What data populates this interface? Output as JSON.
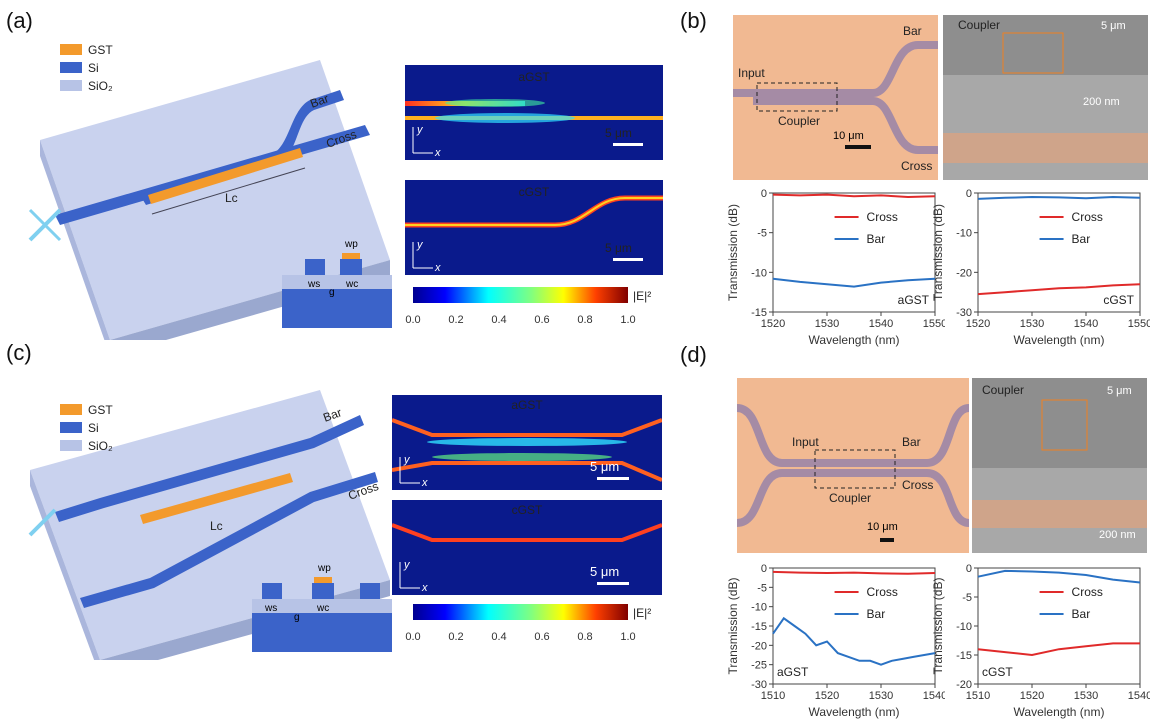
{
  "panels": {
    "a": "(a)",
    "b": "(b)",
    "c": "(c)",
    "d": "(d)"
  },
  "legend3d": {
    "gst": "GST",
    "si": "Si",
    "sio2": "SiO₂"
  },
  "colors": {
    "gst": "#f39a2c",
    "si": "#3b63c9",
    "sio2": "#b7c3e6",
    "red": "#e02a2a",
    "blue": "#2a72c4",
    "micro_bg": "#f1b992",
    "wg": "#a58ba5"
  },
  "labels3d": {
    "bar": "Bar",
    "cross": "Cross",
    "lc": "Lc"
  },
  "cross_section_a": {
    "wp": "wp",
    "ws": "ws",
    "g": "g",
    "wc": "wc"
  },
  "cross_section_c": {
    "wp": "wp",
    "ws": "ws",
    "g": "g",
    "wc": "wc"
  },
  "sim_a": {
    "top": "aGST",
    "bottom": "cGST",
    "scale": "5 μm",
    "y": "y",
    "x": "x"
  },
  "sim_c": {
    "top": "aGST",
    "bottom": "cGST",
    "scale": "5 μm",
    "y": "y",
    "x": "x"
  },
  "colorbar": {
    "label": "|E|²",
    "ticks": [
      "0.0",
      "0.2",
      "0.4",
      "0.6",
      "0.8",
      "1.0"
    ]
  },
  "micro_b": {
    "input": "Input",
    "coupler": "Coupler",
    "bar": "Bar",
    "cross": "Cross",
    "scale": "10 μm",
    "sem_label": "Coupler",
    "sem_scale1": "5 μm",
    "sem_scale2": "200 nm"
  },
  "micro_d": {
    "input": "Input",
    "coupler": "Coupler",
    "bar": "Bar",
    "cross": "Cross",
    "scale": "10 μm",
    "sem_label": "Coupler",
    "sem_scale1": "5 μm",
    "sem_scale2": "200 nm"
  },
  "chart_data": [
    {
      "id": "b-left",
      "type": "line",
      "xlabel": "Wavelength (nm)",
      "ylabel": "Transmission (dB)",
      "xlim": [
        1520,
        1550
      ],
      "ylim": [
        -15,
        0
      ],
      "xticks": [
        1520,
        1530,
        1540,
        1550
      ],
      "yticks": [
        0,
        -5,
        -10,
        -15
      ],
      "annotation": "aGST",
      "legend_position": "top-right",
      "series": [
        {
          "name": "Cross",
          "color": "#e02a2a",
          "x": [
            1520,
            1525,
            1530,
            1535,
            1540,
            1545,
            1550
          ],
          "y": [
            -0.2,
            -0.3,
            -0.2,
            -0.4,
            -0.3,
            -0.5,
            -0.4
          ]
        },
        {
          "name": "Bar",
          "color": "#2a72c4",
          "x": [
            1520,
            1525,
            1530,
            1535,
            1540,
            1545,
            1550
          ],
          "y": [
            -10.8,
            -11.2,
            -11.5,
            -11.8,
            -11.3,
            -11.0,
            -10.8
          ]
        }
      ]
    },
    {
      "id": "b-right",
      "type": "line",
      "xlabel": "Wavelength (nm)",
      "ylabel": "Transmission (dB)",
      "xlim": [
        1520,
        1550
      ],
      "ylim": [
        -30,
        0
      ],
      "xticks": [
        1520,
        1530,
        1540,
        1550
      ],
      "yticks": [
        0,
        -10,
        -20,
        -30
      ],
      "annotation": "cGST",
      "legend_position": "top-right",
      "series": [
        {
          "name": "Cross",
          "color": "#e02a2a",
          "x": [
            1520,
            1525,
            1530,
            1535,
            1540,
            1545,
            1550
          ],
          "y": [
            -25.5,
            -25.0,
            -24.5,
            -24.0,
            -23.8,
            -23.3,
            -23.0
          ]
        },
        {
          "name": "Bar",
          "color": "#2a72c4",
          "x": [
            1520,
            1525,
            1530,
            1535,
            1540,
            1545,
            1550
          ],
          "y": [
            -1.5,
            -1.2,
            -1.0,
            -1.1,
            -1.3,
            -1.0,
            -1.2
          ]
        }
      ]
    },
    {
      "id": "d-left",
      "type": "line",
      "xlabel": "Wavelength (nm)",
      "ylabel": "Transmission (dB)",
      "xlim": [
        1510,
        1540
      ],
      "ylim": [
        -30,
        0
      ],
      "xticks": [
        1510,
        1520,
        1530,
        1540
      ],
      "yticks": [
        0,
        -5,
        -10,
        -15,
        -20,
        -25,
        -30
      ],
      "annotation": "aGST",
      "legend_position": "top-right",
      "series": [
        {
          "name": "Cross",
          "color": "#e02a2a",
          "x": [
            1510,
            1515,
            1520,
            1525,
            1530,
            1535,
            1540
          ],
          "y": [
            -1.0,
            -1.2,
            -1.3,
            -1.2,
            -1.4,
            -1.5,
            -1.3
          ]
        },
        {
          "name": "Bar",
          "color": "#2a72c4",
          "x": [
            1510,
            1512,
            1514,
            1516,
            1518,
            1520,
            1522,
            1524,
            1526,
            1528,
            1530,
            1532,
            1534,
            1536,
            1538,
            1540
          ],
          "y": [
            -17,
            -13,
            -15,
            -17,
            -20,
            -19,
            -22,
            -23,
            -24,
            -24,
            -25,
            -24,
            -23.5,
            -23,
            -22.5,
            -22
          ]
        }
      ]
    },
    {
      "id": "d-right",
      "type": "line",
      "xlabel": "Wavelength (nm)",
      "ylabel": "Transmission (dB)",
      "xlim": [
        1510,
        1540
      ],
      "ylim": [
        -20,
        0
      ],
      "xticks": [
        1510,
        1520,
        1530,
        1540
      ],
      "yticks": [
        0,
        -5,
        -10,
        -15,
        -20
      ],
      "annotation": "cGST",
      "legend_position": "top-right",
      "series": [
        {
          "name": "Cross",
          "color": "#e02a2a",
          "x": [
            1510,
            1515,
            1520,
            1525,
            1530,
            1535,
            1540
          ],
          "y": [
            -14,
            -14.5,
            -15,
            -14,
            -13.5,
            -13,
            -13
          ]
        },
        {
          "name": "Bar",
          "color": "#2a72c4",
          "x": [
            1510,
            1515,
            1520,
            1525,
            1530,
            1535,
            1540
          ],
          "y": [
            -1.5,
            -0.5,
            -0.6,
            -0.8,
            -1.2,
            -2.0,
            -2.5
          ]
        }
      ]
    }
  ]
}
